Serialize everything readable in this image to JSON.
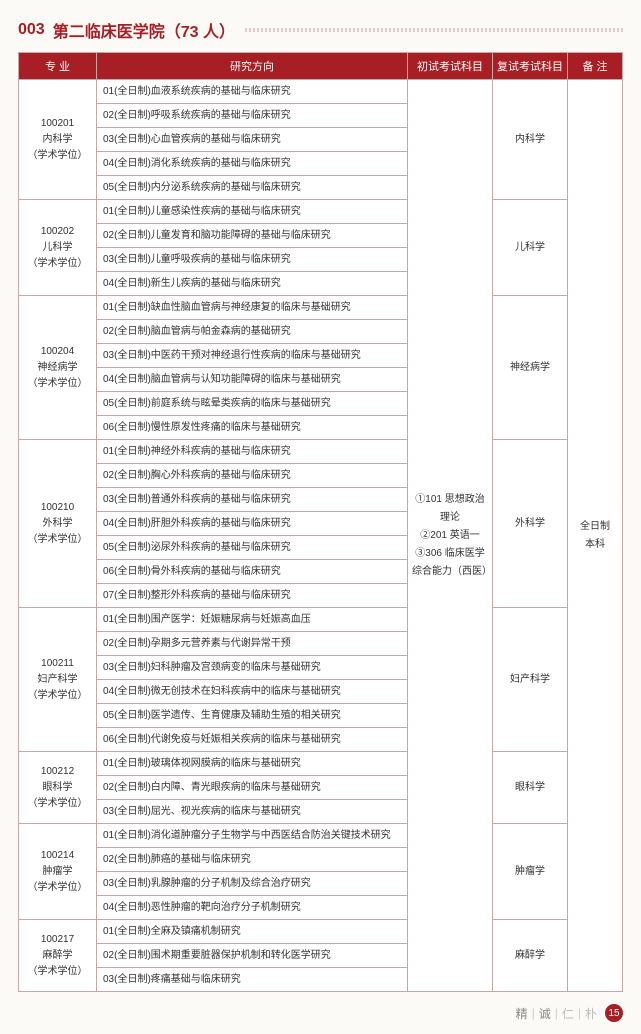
{
  "title": {
    "code": "003",
    "text": "第二临床医学院（73 人）"
  },
  "headers": [
    "专 业",
    "研究方向",
    "初试考试科目",
    "复试考试科目",
    "备 注"
  ],
  "exam1_text": "①101 思想政治理论\n②201 英语一\n③306 临床医学综合能力（西医）",
  "remark_text": "全日制\n本科",
  "majors": [
    {
      "code": "100201",
      "name": "内科学",
      "degree": "（学术学位）",
      "exam2": "内科学",
      "dirs": [
        "01(全日制)血液系统疾病的基础与临床研究",
        "02(全日制)呼吸系统疾病的基础与临床研究",
        "03(全日制)心血管疾病的基础与临床研究",
        "04(全日制)消化系统疾病的基础与临床研究",
        "05(全日制)内分泌系统疾病的基础与临床研究"
      ]
    },
    {
      "code": "100202",
      "name": "儿科学",
      "degree": "（学术学位）",
      "exam2": "儿科学",
      "dirs": [
        "01(全日制)儿童感染性疾病的基础与临床研究",
        "02(全日制)儿童发育和脑功能障碍的基础与临床研究",
        "03(全日制)儿童呼吸疾病的基础与临床研究",
        "04(全日制)新生儿疾病的基础与临床研究"
      ]
    },
    {
      "code": "100204",
      "name": "神经病学",
      "degree": "（学术学位）",
      "exam2": "神经病学",
      "dirs": [
        "01(全日制)缺血性脑血管病与神经康复的临床与基础研究",
        "02(全日制)脑血管病与帕金森病的基础研究",
        "03(全日制)中医药干预对神经退行性疾病的临床与基础研究",
        "04(全日制)脑血管病与认知功能障碍的临床与基础研究",
        "05(全日制)前庭系统与眩晕类疾病的临床与基础研究",
        "06(全日制)慢性原发性疼痛的临床与基础研究"
      ]
    },
    {
      "code": "100210",
      "name": "外科学",
      "degree": "（学术学位）",
      "exam2": "外科学",
      "dirs": [
        "01(全日制)神经外科疾病的基础与临床研究",
        "02(全日制)胸心外科疾病的基础与临床研究",
        "03(全日制)普通外科疾病的基础与临床研究",
        "04(全日制)肝胆外科疾病的基础与临床研究",
        "05(全日制)泌尿外科疾病的基础与临床研究",
        "06(全日制)骨外科疾病的基础与临床研究",
        "07(全日制)整形外科疾病的基础与临床研究"
      ]
    },
    {
      "code": "100211",
      "name": "妇产科学",
      "degree": "（学术学位）",
      "exam2": "妇产科学",
      "dirs": [
        "01(全日制)围产医学：妊娠糖尿病与妊娠高血压",
        "02(全日制)孕期多元营养素与代谢异常干预",
        "03(全日制)妇科肿瘤及宫颈病变的临床与基础研究",
        "04(全日制)微无创技术在妇科疾病中的临床与基础研究",
        "05(全日制)医学遗传、生育健康及辅助生殖的相关研究",
        "06(全日制)代谢免疫与妊娠相关疾病的临床与基础研究"
      ]
    },
    {
      "code": "100212",
      "name": "眼科学",
      "degree": "（学术学位）",
      "exam2": "眼科学",
      "dirs": [
        "01(全日制)玻璃体视网膜病的临床与基础研究",
        "02(全日制)白内障、青光眼疾病的临床与基础研究",
        "03(全日制)屈光、视光疾病的临床与基础研究"
      ]
    },
    {
      "code": "100214",
      "name": "肿瘤学",
      "degree": "（学术学位）",
      "exam2": "肿瘤学",
      "dirs": [
        "01(全日制)消化道肿瘤分子生物学与中西医结合防治关键技术研究",
        "02(全日制)肺癌的基础与临床研究",
        "03(全日制)乳腺肿瘤的分子机制及综合治疗研究",
        "04(全日制)恶性肿瘤的靶向治疗分子机制研究"
      ]
    },
    {
      "code": "100217",
      "name": "麻醉学",
      "degree": "（学术学位）",
      "exam2": "麻醉学",
      "dirs": [
        "01(全日制)全麻及镇痛机制研究",
        "02(全日制)围术期重要脏器保护机制和转化医学研究",
        "03(全日制)疼痛基础与临床研究"
      ]
    }
  ],
  "footer": {
    "words": [
      "精",
      "诚",
      "仁",
      "朴"
    ],
    "page": "15"
  },
  "colors": {
    "accent": "#a71f24",
    "border": "#c8a6a6",
    "bg": "#fcfaf6"
  }
}
